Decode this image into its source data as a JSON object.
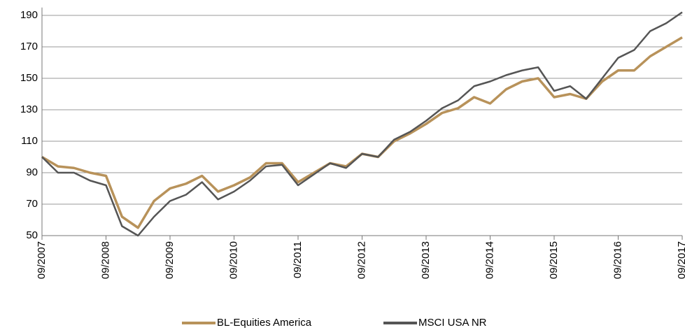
{
  "chart_data": {
    "type": "line",
    "x": [
      "09/2007",
      "12/2007",
      "03/2008",
      "06/2008",
      "09/2008",
      "12/2008",
      "03/2009",
      "06/2009",
      "09/2009",
      "12/2009",
      "03/2010",
      "06/2010",
      "09/2010",
      "12/2010",
      "03/2011",
      "06/2011",
      "09/2011",
      "12/2011",
      "03/2012",
      "06/2012",
      "09/2012",
      "12/2012",
      "03/2013",
      "06/2013",
      "09/2013",
      "12/2013",
      "03/2014",
      "06/2014",
      "09/2014",
      "12/2014",
      "03/2015",
      "06/2015",
      "09/2015",
      "12/2015",
      "03/2016",
      "06/2016",
      "09/2016",
      "12/2016",
      "03/2017",
      "06/2017",
      "09/2017"
    ],
    "series": [
      {
        "name": "BL-Equities America",
        "color": "#b8925a",
        "values": [
          100,
          94,
          93,
          90,
          88,
          62,
          55,
          72,
          80,
          83,
          88,
          78,
          82,
          87,
          96,
          96,
          84,
          90,
          96,
          94,
          102,
          100,
          110,
          115,
          121,
          128,
          131,
          138,
          134,
          143,
          148,
          150,
          138,
          140,
          137,
          148,
          155,
          155,
          164,
          170,
          176
        ]
      },
      {
        "name": "MSCI USA NR",
        "color": "#555555",
        "values": [
          100,
          90,
          90,
          85,
          82,
          56,
          50,
          62,
          72,
          76,
          84,
          73,
          78,
          85,
          94,
          95,
          82,
          89,
          96,
          93,
          102,
          100,
          111,
          116,
          123,
          131,
          136,
          145,
          148,
          152,
          155,
          157,
          142,
          145,
          137,
          150,
          163,
          168,
          180,
          185,
          192
        ]
      }
    ],
    "ylim": [
      50,
      195
    ],
    "yticks": [
      50,
      70,
      90,
      110,
      130,
      150,
      170,
      190
    ],
    "xticks": [
      "09/2007",
      "09/2008",
      "09/2009",
      "09/2010",
      "09/2011",
      "09/2012",
      "09/2013",
      "09/2014",
      "09/2015",
      "09/2016",
      "09/2017"
    ],
    "grid": true
  }
}
